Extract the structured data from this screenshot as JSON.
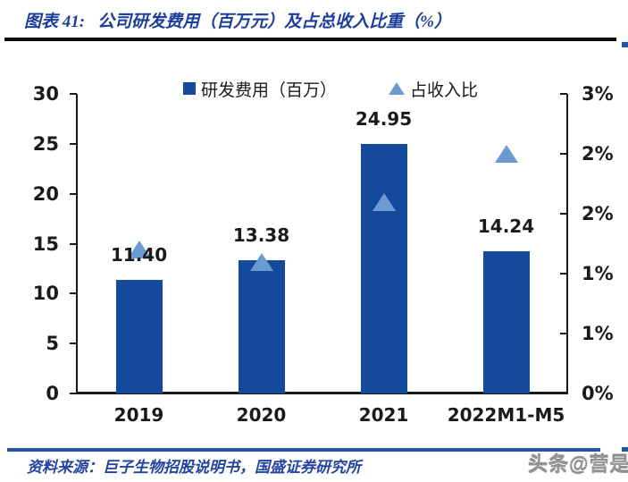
{
  "header": {
    "figure_label": "图表 41:",
    "title": "公司研发费用（百万元）及占总收入比重（%）"
  },
  "chart_data": {
    "type": "bar",
    "title": "公司研发费用（百万元）及占总收入比重（%）",
    "legend_position": "top",
    "categories": [
      "2019",
      "2020",
      "2021",
      "2022M1-M5"
    ],
    "series": [
      {
        "name": "研发费用（百万）",
        "type": "bar",
        "axis": "left",
        "color": "#14499c",
        "values": [
          11.4,
          13.38,
          24.95,
          14.24
        ],
        "data_labels": [
          "11.40",
          "13.38",
          "24.95",
          "14.24"
        ]
      },
      {
        "name": "占收入比",
        "type": "scatter",
        "marker": "triangle",
        "axis": "right",
        "color": "#6b9bd2",
        "values_percent": [
          1.2,
          1.1,
          1.6,
          2.0
        ]
      }
    ],
    "left_axis": {
      "min": 0,
      "max": 30,
      "tick_labels_top_to_bottom": [
        "30",
        "25",
        "20",
        "15",
        "10",
        "5",
        "0"
      ]
    },
    "right_axis": {
      "min_percent": 0,
      "max_percent": 2.5,
      "tick_step_percent": 0.5,
      "tick_labels_top_to_bottom": [
        "3%",
        "2%",
        "2%",
        "1%",
        "1%",
        "0%"
      ]
    },
    "grid": "off"
  },
  "footer": {
    "source": "资料来源：巨子生物招股说明书，国盛证券研究所"
  },
  "watermark": "头条@营是",
  "colors": {
    "bar": "#14499c",
    "marker": "#6b9bd2",
    "accent_blue": "#2552a8",
    "title_blue": "#1c3d9e"
  }
}
